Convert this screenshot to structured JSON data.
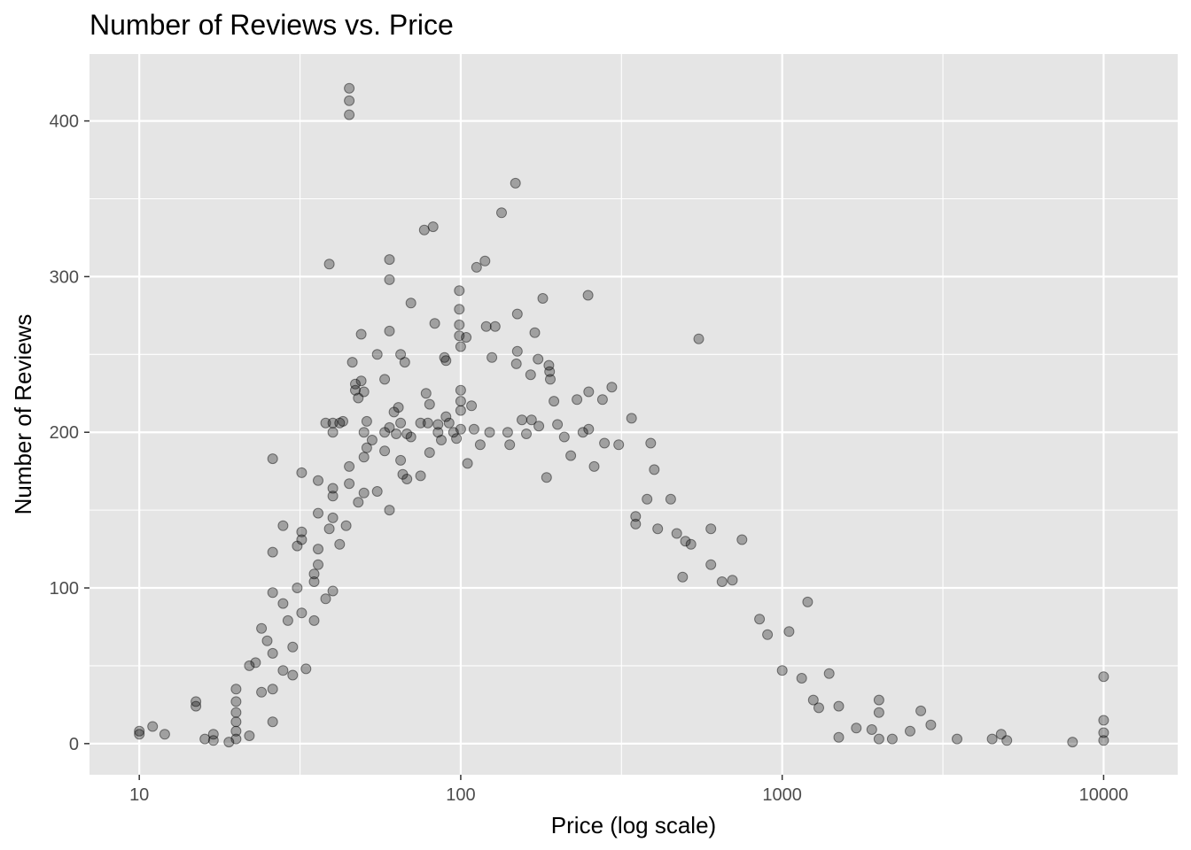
{
  "chart_data": {
    "type": "scatter",
    "title": "Number of Reviews vs. Price",
    "xlabel": "Price (log scale)",
    "ylabel": "Number of Reviews",
    "x_scale": "log10",
    "xlim": [
      7,
      17000
    ],
    "ylim": [
      -20,
      443
    ],
    "x_ticks": [
      10,
      100,
      1000,
      10000
    ],
    "x_tick_labels": [
      "10",
      "100",
      "1000",
      "10000"
    ],
    "y_ticks": [
      0,
      100,
      200,
      300,
      400
    ],
    "y_tick_labels": [
      "0",
      "100",
      "200",
      "300",
      "400"
    ],
    "grid": true,
    "panel_background": "#e5e5e5",
    "grid_color": "#ffffff",
    "point_color": "#000000",
    "point_opacity": 0.3,
    "points": [
      [
        10,
        8
      ],
      [
        10,
        6
      ],
      [
        11,
        11
      ],
      [
        12,
        6
      ],
      [
        15,
        27
      ],
      [
        15,
        24
      ],
      [
        16,
        3
      ],
      [
        17,
        6
      ],
      [
        17,
        2
      ],
      [
        19,
        1
      ],
      [
        20,
        35
      ],
      [
        20,
        27
      ],
      [
        20,
        20
      ],
      [
        20,
        14
      ],
      [
        20,
        8
      ],
      [
        20,
        3
      ],
      [
        22,
        5
      ],
      [
        22,
        50
      ],
      [
        23,
        52
      ],
      [
        24,
        74
      ],
      [
        24,
        33
      ],
      [
        25,
        66
      ],
      [
        26,
        183
      ],
      [
        26,
        123
      ],
      [
        26,
        97
      ],
      [
        26,
        58
      ],
      [
        26,
        35
      ],
      [
        26,
        14
      ],
      [
        28,
        140
      ],
      [
        28,
        90
      ],
      [
        28,
        47
      ],
      [
        29,
        79
      ],
      [
        30,
        62
      ],
      [
        30,
        44
      ],
      [
        31,
        127
      ],
      [
        31,
        100
      ],
      [
        32,
        174
      ],
      [
        32,
        136
      ],
      [
        32,
        131
      ],
      [
        32,
        84
      ],
      [
        33,
        48
      ],
      [
        35,
        109
      ],
      [
        35,
        104
      ],
      [
        35,
        79
      ],
      [
        36,
        169
      ],
      [
        36,
        148
      ],
      [
        36,
        125
      ],
      [
        36,
        115
      ],
      [
        38,
        206
      ],
      [
        38,
        93
      ],
      [
        39,
        308
      ],
      [
        39,
        138
      ],
      [
        40,
        206
      ],
      [
        40,
        200
      ],
      [
        40,
        164
      ],
      [
        40,
        159
      ],
      [
        40,
        145
      ],
      [
        40,
        98
      ],
      [
        42,
        206
      ],
      [
        42,
        128
      ],
      [
        43,
        207
      ],
      [
        44,
        140
      ],
      [
        45,
        421
      ],
      [
        45,
        413
      ],
      [
        45,
        404
      ],
      [
        45,
        178
      ],
      [
        45,
        167
      ],
      [
        46,
        245
      ],
      [
        47,
        231
      ],
      [
        47,
        227
      ],
      [
        48,
        222
      ],
      [
        48,
        155
      ],
      [
        49,
        263
      ],
      [
        49,
        233
      ],
      [
        50,
        226
      ],
      [
        50,
        200
      ],
      [
        50,
        184
      ],
      [
        50,
        161
      ],
      [
        51,
        207
      ],
      [
        51,
        190
      ],
      [
        53,
        195
      ],
      [
        55,
        250
      ],
      [
        55,
        162
      ],
      [
        58,
        234
      ],
      [
        58,
        200
      ],
      [
        58,
        188
      ],
      [
        60,
        311
      ],
      [
        60,
        298
      ],
      [
        60,
        265
      ],
      [
        60,
        203
      ],
      [
        60,
        150
      ],
      [
        62,
        213
      ],
      [
        63,
        199
      ],
      [
        64,
        216
      ],
      [
        65,
        250
      ],
      [
        65,
        206
      ],
      [
        65,
        182
      ],
      [
        66,
        173
      ],
      [
        67,
        245
      ],
      [
        68,
        199
      ],
      [
        68,
        170
      ],
      [
        70,
        197
      ],
      [
        70,
        283
      ],
      [
        75,
        206
      ],
      [
        75,
        172
      ],
      [
        77,
        330
      ],
      [
        78,
        225
      ],
      [
        79,
        206
      ],
      [
        80,
        187
      ],
      [
        80,
        218
      ],
      [
        82,
        332
      ],
      [
        83,
        270
      ],
      [
        85,
        205
      ],
      [
        85,
        200
      ],
      [
        87,
        195
      ],
      [
        89,
        248
      ],
      [
        90,
        246
      ],
      [
        90,
        210
      ],
      [
        92,
        206
      ],
      [
        95,
        200
      ],
      [
        97,
        196
      ],
      [
        99,
        291
      ],
      [
        99,
        279
      ],
      [
        99,
        269
      ],
      [
        99,
        262
      ],
      [
        100,
        255
      ],
      [
        100,
        227
      ],
      [
        100,
        220
      ],
      [
        100,
        214
      ],
      [
        100,
        202
      ],
      [
        104,
        261
      ],
      [
        105,
        180
      ],
      [
        108,
        217
      ],
      [
        110,
        202
      ],
      [
        112,
        306
      ],
      [
        115,
        192
      ],
      [
        119,
        310
      ],
      [
        120,
        268
      ],
      [
        123,
        200
      ],
      [
        125,
        248
      ],
      [
        128,
        268
      ],
      [
        134,
        341
      ],
      [
        140,
        200
      ],
      [
        142,
        192
      ],
      [
        148,
        360
      ],
      [
        149,
        244
      ],
      [
        150,
        276
      ],
      [
        150,
        252
      ],
      [
        155,
        208
      ],
      [
        160,
        199
      ],
      [
        165,
        237
      ],
      [
        166,
        208
      ],
      [
        170,
        264
      ],
      [
        174,
        247
      ],
      [
        175,
        204
      ],
      [
        180,
        286
      ],
      [
        185,
        171
      ],
      [
        188,
        243
      ],
      [
        189,
        239
      ],
      [
        190,
        234
      ],
      [
        195,
        220
      ],
      [
        200,
        205
      ],
      [
        210,
        197
      ],
      [
        220,
        185
      ],
      [
        230,
        221
      ],
      [
        240,
        200
      ],
      [
        249,
        288
      ],
      [
        250,
        226
      ],
      [
        250,
        202
      ],
      [
        260,
        178
      ],
      [
        276,
        221
      ],
      [
        280,
        193
      ],
      [
        295,
        229
      ],
      [
        310,
        192
      ],
      [
        340,
        209
      ],
      [
        350,
        146
      ],
      [
        350,
        141
      ],
      [
        380,
        157
      ],
      [
        390,
        193
      ],
      [
        400,
        176
      ],
      [
        410,
        138
      ],
      [
        450,
        157
      ],
      [
        470,
        135
      ],
      [
        490,
        107
      ],
      [
        500,
        130
      ],
      [
        520,
        128
      ],
      [
        550,
        260
      ],
      [
        600,
        138
      ],
      [
        600,
        115
      ],
      [
        650,
        104
      ],
      [
        700,
        105
      ],
      [
        750,
        131
      ],
      [
        850,
        80
      ],
      [
        900,
        70
      ],
      [
        1000,
        47
      ],
      [
        1050,
        72
      ],
      [
        1150,
        42
      ],
      [
        1200,
        91
      ],
      [
        1250,
        28
      ],
      [
        1300,
        23
      ],
      [
        1400,
        45
      ],
      [
        1500,
        24
      ],
      [
        1500,
        4
      ],
      [
        1700,
        10
      ],
      [
        1900,
        9
      ],
      [
        2000,
        28
      ],
      [
        2000,
        20
      ],
      [
        2000,
        3
      ],
      [
        2200,
        3
      ],
      [
        2500,
        8
      ],
      [
        2700,
        21
      ],
      [
        2900,
        12
      ],
      [
        3500,
        3
      ],
      [
        4500,
        3
      ],
      [
        4800,
        6
      ],
      [
        5000,
        2
      ],
      [
        8000,
        1
      ],
      [
        10000,
        43
      ],
      [
        10000,
        15
      ],
      [
        10000,
        7
      ],
      [
        10000,
        2
      ]
    ]
  }
}
